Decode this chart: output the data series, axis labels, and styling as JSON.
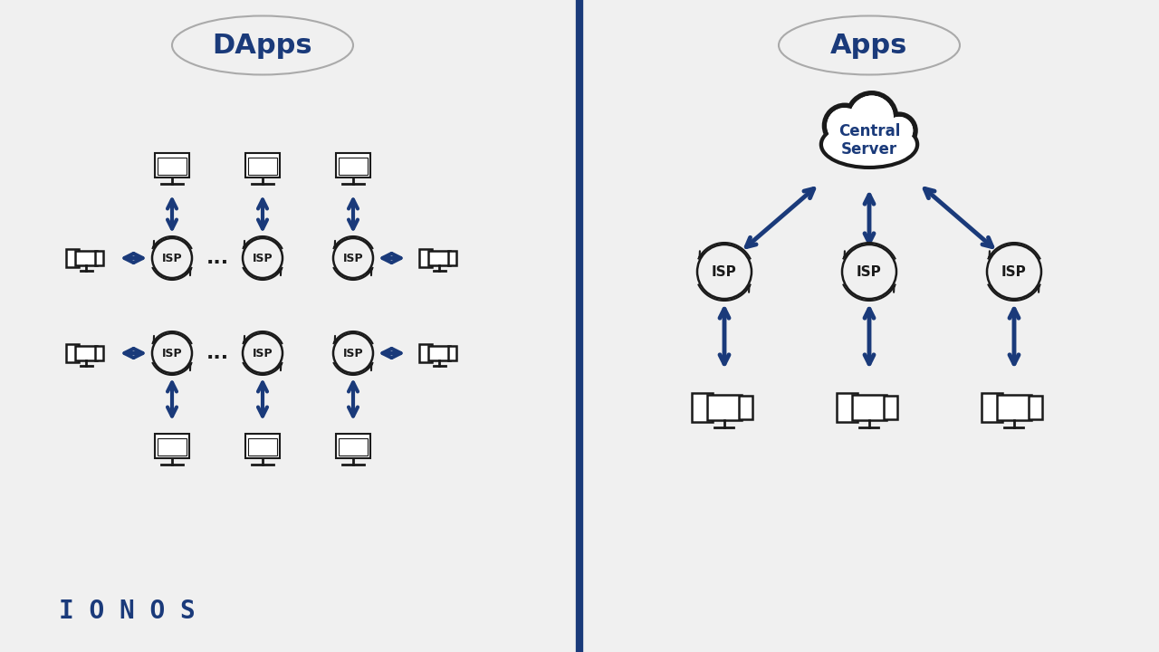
{
  "bg_color": "#f0f0f0",
  "divider_color": "#1a3a7a",
  "arrow_color": "#1a3a7a",
  "title_color": "#1a3a7a",
  "isp_color": "#1a1a1a",
  "cloud_edge_color": "#1a1a1a",
  "cloud_text_color": "#1a3a7a",
  "ionos_color": "#1a3a7a",
  "left_title": "DApps",
  "right_title": "Apps",
  "central_server_text": "Central\nServer",
  "isp_label": "ISP",
  "dots": "...",
  "ionos_text": "I O N O S"
}
